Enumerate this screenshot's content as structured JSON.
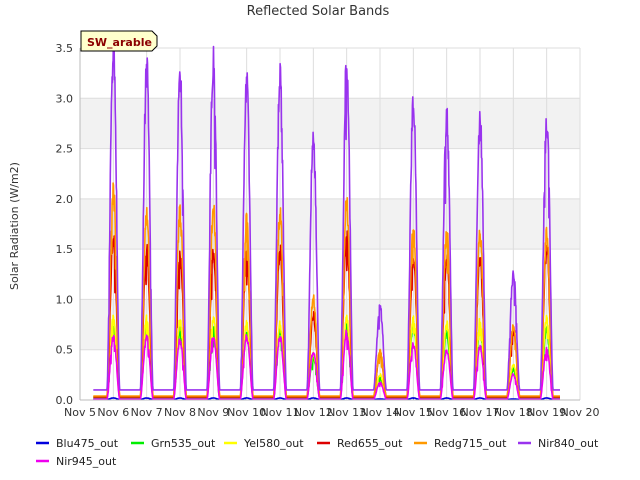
{
  "chart_data": {
    "type": "line",
    "title": "Reflected Solar Bands",
    "xlabel": "",
    "ylabel": "Solar Radiation (W/m2)",
    "badge": "SW_arable",
    "xlim": [
      5,
      20
    ],
    "ylim": [
      0,
      3.5
    ],
    "x_ticks": [
      5,
      6,
      7,
      8,
      9,
      10,
      11,
      12,
      13,
      14,
      15,
      16,
      17,
      18,
      19,
      20
    ],
    "x_tick_labels": [
      "Nov 5",
      "Nov 6",
      "Nov 7",
      "Nov 8",
      "Nov 9",
      "Nov 10",
      "Nov 11",
      "Nov 12",
      "Nov 13",
      "Nov 14",
      "Nov 15",
      "Nov 16",
      "Nov 17",
      "Nov 18",
      "Nov 19",
      "Nov 20"
    ],
    "y_ticks": [
      0.0,
      0.5,
      1.0,
      1.5,
      2.0,
      2.5,
      3.0,
      3.5
    ],
    "y_tick_labels": [
      "0.0",
      "0.5",
      "1.0",
      "1.5",
      "2.0",
      "2.5",
      "3.0",
      "3.5"
    ],
    "x_range_data": [
      5.4,
      19.4
    ],
    "grid": true,
    "legend_position": "bottom",
    "days": [
      6,
      7,
      8,
      9,
      10,
      11,
      12,
      13,
      14,
      15,
      16,
      17,
      18,
      19
    ],
    "series": [
      {
        "name": "Blu475_out",
        "color": "#0000dd",
        "baseline": 0.005,
        "peaks": [
          0.02,
          0.02,
          0.02,
          0.02,
          0.02,
          0.02,
          0.02,
          0.02,
          0.01,
          0.02,
          0.02,
          0.02,
          0.01,
          0.02
        ]
      },
      {
        "name": "Grn535_out",
        "color": "#00ee00",
        "baseline": 0.02,
        "peaks": [
          0.74,
          0.72,
          0.7,
          0.7,
          0.68,
          0.68,
          0.42,
          0.73,
          0.22,
          0.74,
          0.67,
          0.7,
          0.3,
          0.7
        ]
      },
      {
        "name": "Yel580_out",
        "color": "#ffff00",
        "baseline": 0.03,
        "peaks": [
          0.8,
          0.8,
          0.78,
          0.8,
          0.75,
          0.75,
          0.45,
          0.8,
          0.25,
          0.8,
          0.75,
          0.78,
          0.35,
          0.8
        ]
      },
      {
        "name": "Red655_out",
        "color": "#dd0000",
        "baseline": 0.03,
        "peaks": [
          1.61,
          1.48,
          1.45,
          1.47,
          1.45,
          1.47,
          0.85,
          1.62,
          0.45,
          1.43,
          1.42,
          1.4,
          0.7,
          1.5
        ]
      },
      {
        "name": "Redg715_out",
        "color": "#ff9900",
        "baseline": 0.04,
        "peaks": [
          2.06,
          1.84,
          1.85,
          1.9,
          1.77,
          1.85,
          1.0,
          1.95,
          0.48,
          1.7,
          1.68,
          1.63,
          0.72,
          1.63
        ]
      },
      {
        "name": "Nir840_out",
        "color": "#9933ee",
        "baseline": 0.1,
        "peaks": [
          3.48,
          3.3,
          3.22,
          3.4,
          3.13,
          3.17,
          2.61,
          3.35,
          0.92,
          2.92,
          2.8,
          2.78,
          1.25,
          2.8
        ]
      },
      {
        "name": "Nir945_out",
        "color": "#ee00ee",
        "baseline": 0.01,
        "peaks": [
          0.63,
          0.62,
          0.6,
          0.63,
          0.63,
          0.62,
          0.48,
          0.67,
          0.17,
          0.55,
          0.5,
          0.53,
          0.25,
          0.5
        ]
      }
    ]
  }
}
